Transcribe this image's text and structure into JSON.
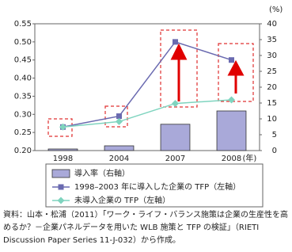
{
  "chart_data": {
    "type": "bar-line",
    "categories": [
      "1998",
      "2004",
      "2007",
      "2008"
    ],
    "x_unit": "(年)",
    "y2_unit": "(%)",
    "series": [
      {
        "name": "導入率（右軸）",
        "type": "bar",
        "axis": "y2",
        "color": "#a9a9d9",
        "values": [
          0.5,
          1.5,
          8.3,
          12.5
        ]
      },
      {
        "name": "1998–2003 年に導入した企業の TFP（左軸）",
        "type": "line",
        "marker": "square",
        "color": "#6a6ab0",
        "values": [
          0.265,
          0.295,
          0.5,
          0.45
        ]
      },
      {
        "name": "未導入企業の TFP（左軸）",
        "type": "line",
        "marker": "diamond",
        "color": "#7fd4bf",
        "values": [
          0.265,
          0.28,
          0.33,
          0.34
        ]
      }
    ],
    "ylim": [
      0.2,
      0.55
    ],
    "yticks": [
      {
        "value": 0.2,
        "label": "0.20"
      },
      0.25,
      {
        "value": 0.3,
        "label": "0.30"
      },
      0.35,
      {
        "value": 0.4,
        "label": "0.40"
      },
      0.45,
      {
        "value": 0.5,
        "label": "0.50"
      },
      0.55
    ],
    "y2lim": [
      0,
      40
    ],
    "y2ticks": [
      0,
      5,
      10,
      15,
      20,
      25,
      30,
      35,
      40
    ],
    "source": "資料：山本・松浦（2011）「ワーク・ライフ・バランス施策は企業の生産性を高めるか？－企業パネルデータを用いた WLB 施策と TFP の検証」（RIETI Discussion Paper Series 11-J-032）から作成。"
  }
}
